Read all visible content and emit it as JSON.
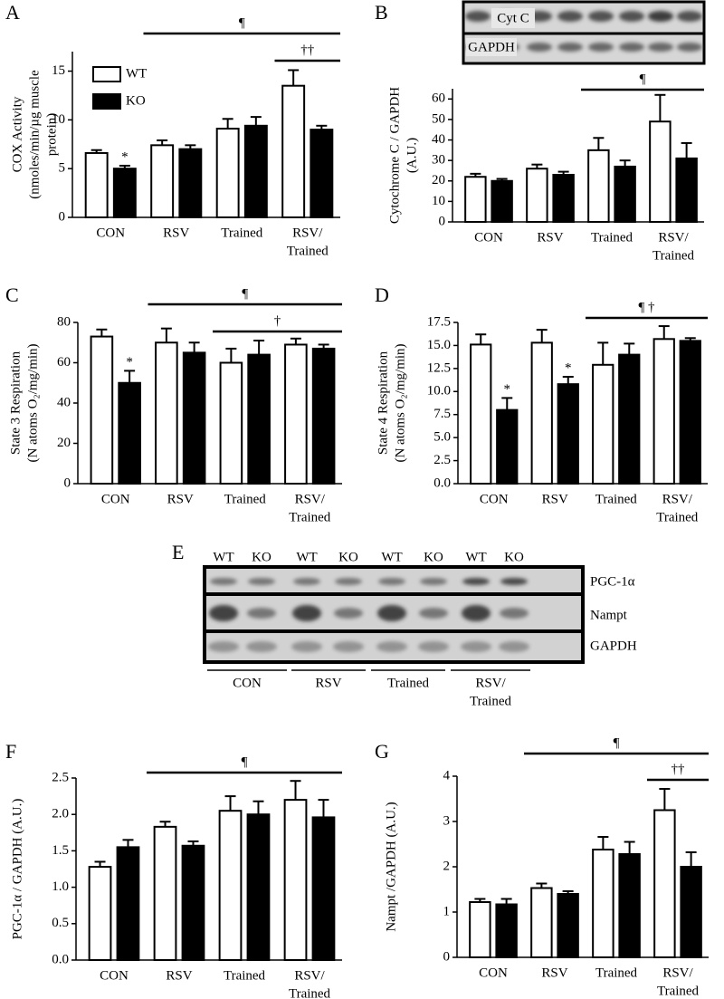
{
  "chart_data": [
    {
      "type": "bar",
      "panel": "A",
      "ylabel": [
        "COX Activity",
        "(nmoles/min/µg muscle",
        "protein)"
      ],
      "categories": [
        "CON",
        "RSV",
        "Trained",
        [
          "RSV/",
          "Trained"
        ]
      ],
      "series": [
        {
          "name": "WT",
          "color": "#ffffff",
          "values": [
            6.6,
            7.4,
            9.1,
            13.5
          ],
          "errors": [
            0.3,
            0.5,
            1.0,
            1.6
          ]
        },
        {
          "name": "KO",
          "color": "#000000",
          "values": [
            5.0,
            7.0,
            9.4,
            9.0
          ],
          "errors": [
            0.3,
            0.4,
            0.9,
            0.4
          ]
        }
      ],
      "ylim": [
        0,
        17
      ],
      "yticks": [
        0,
        5,
        10,
        15
      ],
      "legend": "upper left",
      "annotations": [
        {
          "text": "*",
          "series": 1,
          "category": 0
        }
      ],
      "brackets": [
        {
          "text": "¶",
          "span": [
            1,
            3
          ]
        },
        {
          "text": "††",
          "span": [
            3,
            3
          ]
        }
      ]
    },
    {
      "type": "bar",
      "panel": "B",
      "ylabel": [
        "Cytochrome C / GAPDH",
        "(A.U.)"
      ],
      "categories": [
        "CON",
        "RSV",
        "Trained",
        [
          "RSV/",
          "Trained"
        ]
      ],
      "series": [
        {
          "color": "#ffffff",
          "values": [
            22,
            26,
            35,
            49
          ],
          "errors": [
            1.5,
            2,
            6,
            13
          ]
        },
        {
          "color": "#000000",
          "values": [
            20,
            23,
            27,
            31
          ],
          "errors": [
            1,
            1.5,
            3,
            7.5
          ]
        }
      ],
      "ylim": [
        0,
        65
      ],
      "yticks": [
        0,
        10,
        20,
        30,
        40,
        50,
        60
      ],
      "annotations": [],
      "brackets": [
        {
          "text": "¶",
          "span": [
            2,
            3
          ]
        }
      ]
    },
    {
      "type": "bar",
      "panel": "C",
      "ylabel": [
        "State 3 Respiration",
        "(N atoms O₂/mg/min)"
      ],
      "categories": [
        "CON",
        "RSV",
        "Trained",
        [
          "RSV/",
          "Trained"
        ]
      ],
      "series": [
        {
          "color": "#ffffff",
          "values": [
            73,
            70,
            60,
            69
          ],
          "errors": [
            3.5,
            7,
            7,
            3
          ]
        },
        {
          "color": "#000000",
          "values": [
            50,
            65,
            64,
            67
          ],
          "errors": [
            6,
            5,
            7,
            2
          ]
        }
      ],
      "ylim": [
        0,
        80
      ],
      "yticks": [
        0,
        20,
        40,
        60,
        80
      ],
      "annotations": [
        {
          "text": "*",
          "series": 1,
          "category": 0
        }
      ],
      "brackets": [
        {
          "text": "¶",
          "span": [
            1,
            3
          ]
        },
        {
          "text": "†",
          "span": [
            2,
            3
          ]
        }
      ]
    },
    {
      "type": "bar",
      "panel": "D",
      "ylabel": [
        "State 4 Respiration",
        "(N atoms O₂/mg/min)"
      ],
      "categories": [
        "CON",
        "RSV",
        "Trained",
        [
          "RSV/",
          "Trained"
        ]
      ],
      "series": [
        {
          "color": "#ffffff",
          "values": [
            15.1,
            15.3,
            12.9,
            15.7
          ],
          "errors": [
            1.1,
            1.4,
            2.4,
            1.4
          ]
        },
        {
          "color": "#000000",
          "values": [
            8.0,
            10.8,
            14.0,
            15.5
          ],
          "errors": [
            1.3,
            0.8,
            1.2,
            0.3
          ]
        }
      ],
      "ylim": [
        0,
        17.5
      ],
      "yticks": [
        {
          "value": 0,
          "label": "0.0"
        },
        2.5,
        {
          "value": 5,
          "label": "5.0"
        },
        7.5,
        {
          "value": 10,
          "label": "10.0"
        },
        12.5,
        {
          "value": 15,
          "label": "15.0"
        },
        17.5
      ],
      "annotations": [
        {
          "text": "*",
          "series": 1,
          "category": 0
        },
        {
          "text": "*",
          "series": 1,
          "category": 1
        }
      ],
      "brackets": [
        {
          "text": "¶ †",
          "span": [
            2,
            3
          ]
        }
      ]
    },
    {
      "type": "bar",
      "panel": "F",
      "ylabel": [
        "PGC-1α / GAPDH (A.U.)"
      ],
      "categories": [
        "CON",
        "RSV",
        "Trained",
        [
          "RSV/",
          "Trained"
        ]
      ],
      "series": [
        {
          "color": "#ffffff",
          "values": [
            1.28,
            1.83,
            2.05,
            2.2
          ],
          "errors": [
            0.07,
            0.07,
            0.2,
            0.26
          ]
        },
        {
          "color": "#000000",
          "values": [
            1.55,
            1.57,
            2.0,
            1.96
          ],
          "errors": [
            0.1,
            0.06,
            0.18,
            0.24
          ]
        }
      ],
      "ylim": [
        0,
        2.5
      ],
      "yticks": [
        {
          "value": 0,
          "label": "0.0"
        },
        0.5,
        {
          "value": 1,
          "label": "1.0"
        },
        1.5,
        {
          "value": 2,
          "label": "2.0"
        },
        2.5
      ],
      "annotations": [],
      "brackets": [
        {
          "text": "¶",
          "span": [
            1,
            3
          ]
        }
      ]
    },
    {
      "type": "bar",
      "panel": "G",
      "ylabel": [
        "Nampt /GAPDH (A.U.)"
      ],
      "categories": [
        "CON",
        "RSV",
        "Trained",
        [
          "RSV/",
          "Trained"
        ]
      ],
      "series": [
        {
          "color": "#ffffff",
          "values": [
            1.22,
            1.53,
            2.38,
            3.25
          ],
          "errors": [
            0.07,
            0.1,
            0.28,
            0.47
          ]
        },
        {
          "color": "#000000",
          "values": [
            1.17,
            1.4,
            2.28,
            2.0
          ],
          "errors": [
            0.12,
            0.06,
            0.27,
            0.32
          ]
        }
      ],
      "ylim": [
        0,
        4
      ],
      "yticks": [
        0,
        1,
        2,
        3,
        4
      ],
      "annotations": [],
      "brackets": [
        {
          "text": "¶",
          "span": [
            1,
            3
          ]
        },
        {
          "text": "††",
          "span": [
            3,
            3
          ]
        }
      ]
    }
  ],
  "blots": {
    "cytc": {
      "rows": [
        "Cyt C",
        "GAPDH"
      ]
    },
    "main": {
      "panel": "E",
      "lanes": [
        "WT",
        "KO",
        "WT",
        "KO",
        "WT",
        "KO",
        "WT",
        "KO"
      ],
      "rows": [
        "PGC-1α",
        "Nampt",
        "GAPDH"
      ],
      "groups": [
        "CON",
        "RSV",
        "Trained",
        [
          "RSV/",
          "Trained"
        ]
      ]
    }
  }
}
